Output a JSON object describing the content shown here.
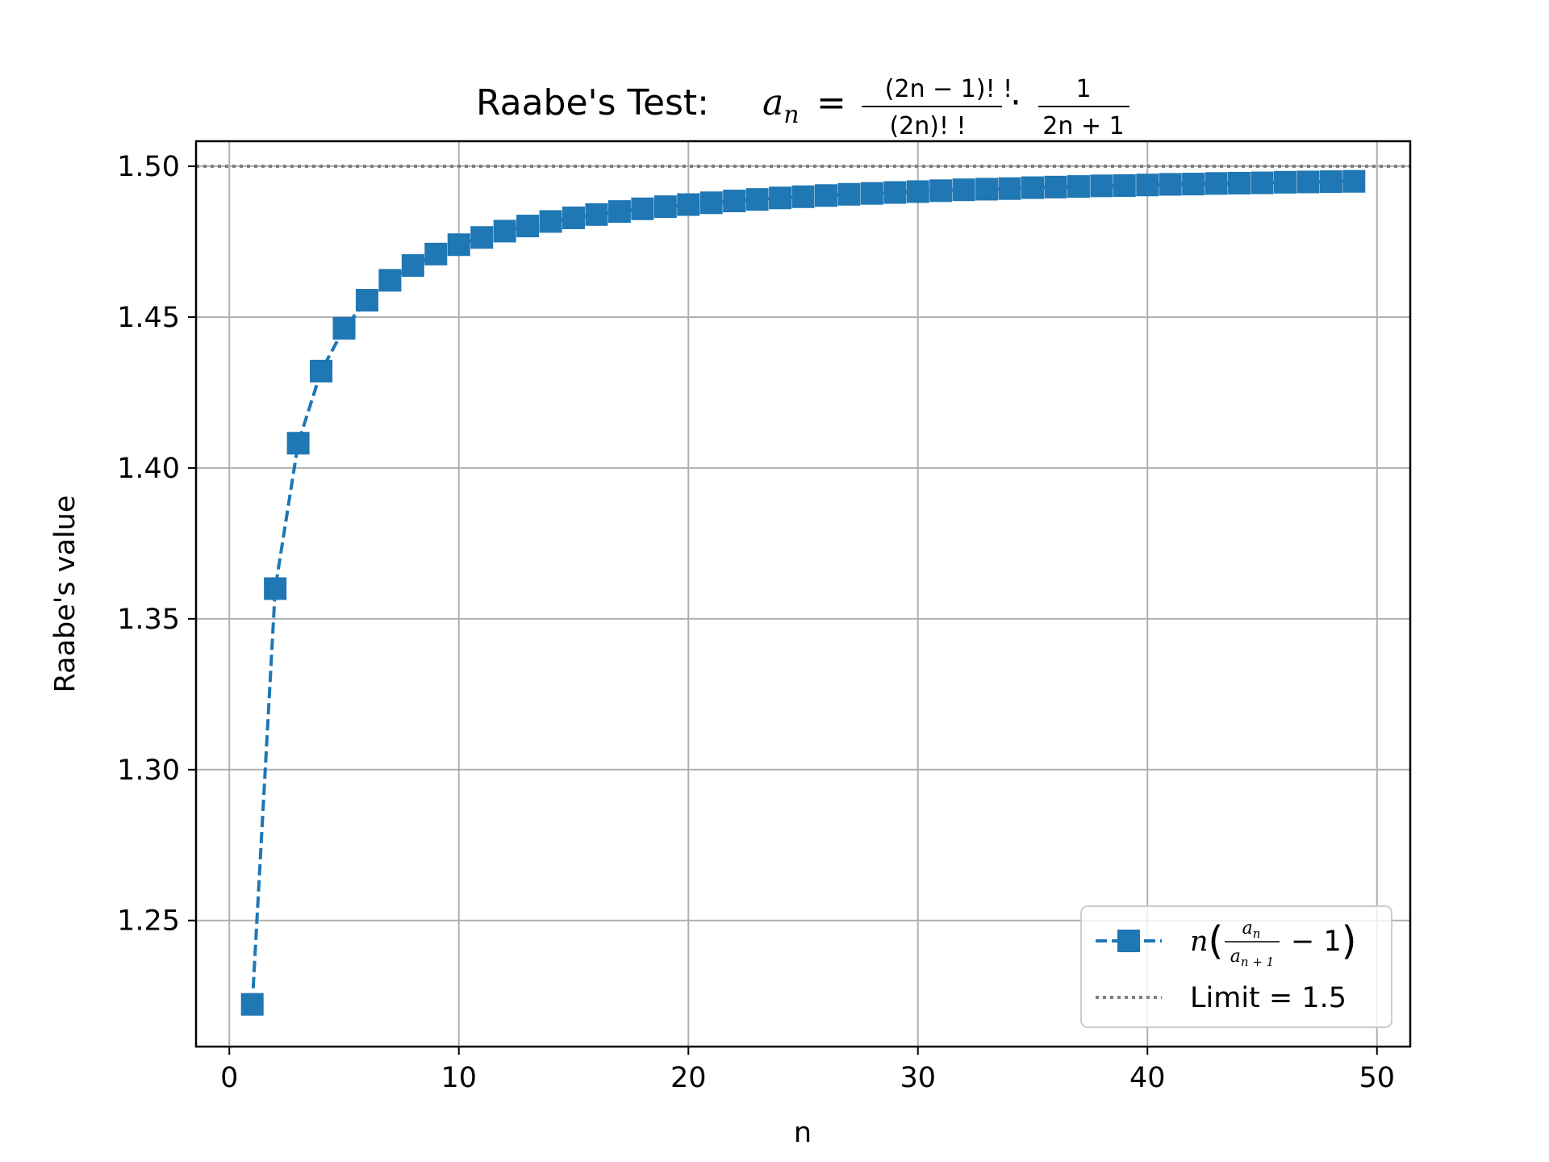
{
  "chart_data": {
    "type": "line",
    "title": {
      "prefix": "Raabe's Test: ",
      "formula": {
        "lhs_var": "a",
        "lhs_sub": "n",
        "equals": "=",
        "frac1_num": "(2n − 1)! !",
        "frac1_den": "(2n)! !",
        "dot": "·",
        "frac2_num": "1",
        "frac2_den": "2n + 1"
      }
    },
    "xlabel": "n",
    "ylabel": "Raabe's value",
    "xlim": [
      -1.45,
      51.45
    ],
    "ylim": [
      1.2082,
      1.5083
    ],
    "xticks": [
      0,
      10,
      20,
      30,
      40,
      50
    ],
    "yticks": [
      1.25,
      1.3,
      1.35,
      1.4,
      1.45,
      1.5
    ],
    "ytick_decimals": 2,
    "grid": true,
    "legend_position": "lower right",
    "series": [
      {
        "name": {
          "prefix": "n",
          "frac_num": "a",
          "frac_num_sub": "n",
          "frac_den": "a",
          "frac_den_sub": "n + 1",
          "suffix": "− 1"
        },
        "color": "#1f77b4",
        "line_style": "dashed",
        "marker": "square",
        "x": [
          1,
          2,
          3,
          4,
          5,
          6,
          7,
          8,
          9,
          10,
          11,
          12,
          13,
          14,
          15,
          16,
          17,
          18,
          19,
          20,
          21,
          22,
          23,
          24,
          25,
          26,
          27,
          28,
          29,
          30,
          31,
          32,
          33,
          34,
          35,
          36,
          37,
          38,
          39,
          40,
          41,
          42,
          43,
          44,
          45,
          46,
          47,
          48,
          49
        ],
        "y": [
          1.2222,
          1.36,
          1.4082,
          1.4321,
          1.4463,
          1.4556,
          1.4622,
          1.4671,
          1.4709,
          1.474,
          1.4764,
          1.4785,
          1.4802,
          1.4817,
          1.4829,
          1.484,
          1.485,
          1.4859,
          1.4866,
          1.4873,
          1.4879,
          1.4885,
          1.489,
          1.4895,
          1.4899,
          1.4903,
          1.4907,
          1.491,
          1.4913,
          1.4916,
          1.4919,
          1.4922,
          1.4924,
          1.4926,
          1.4929,
          1.4931,
          1.4933,
          1.4935,
          1.4936,
          1.4938,
          1.494,
          1.4941,
          1.4943,
          1.4944,
          1.4945,
          1.4947,
          1.4948,
          1.4949,
          1.495
        ]
      },
      {
        "name": "Limit = 1.5",
        "color": "#808080",
        "line_style": "dotted",
        "y_constant": 1.5
      }
    ]
  }
}
